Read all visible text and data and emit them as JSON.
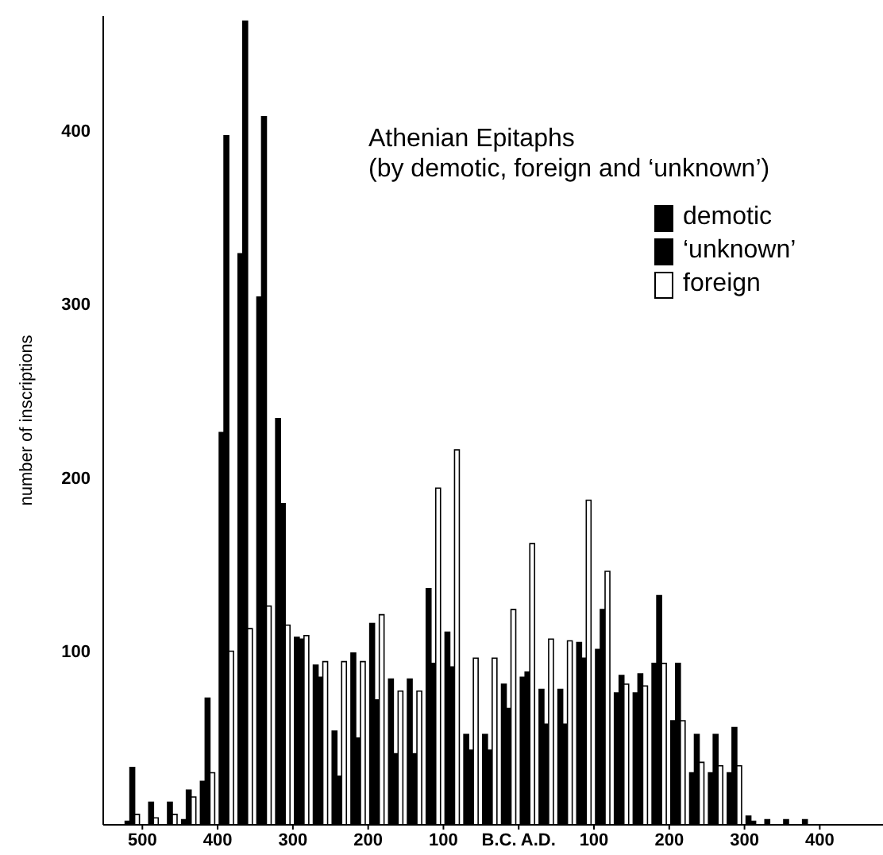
{
  "chart_data": {
    "type": "bar",
    "title": "Athenian Epitaphs",
    "subtitle": "(by demotic, foreign and ‘unknown’)",
    "ylabel": "number of inscriptions",
    "x": [
      -512.5,
      -487.5,
      -462.5,
      -437.5,
      -412.5,
      -387.5,
      -362.5,
      -337.5,
      -312.5,
      -287.5,
      -262.5,
      -237.5,
      -212.5,
      -187.5,
      -162.5,
      -137.5,
      -112.5,
      -87.5,
      -62.5,
      -37.5,
      -12.5,
      12.5,
      37.5,
      62.5,
      87.5,
      112.5,
      137.5,
      162.5,
      187.5,
      212.5,
      237.5,
      262.5,
      287.5,
      312.5,
      337.5,
      362.5,
      387.5
    ],
    "series": [
      {
        "name": "demotic",
        "color": "#000000",
        "values": [
          2,
          0,
          0,
          3,
          25,
          226,
          329,
          304,
          234,
          108,
          92,
          54,
          99,
          116,
          84,
          84,
          136,
          111,
          52,
          52,
          81,
          85,
          78,
          78,
          105,
          101,
          76,
          76,
          93,
          60,
          30,
          30,
          30,
          5,
          3,
          3,
          3
        ]
      },
      {
        "name": "‘unknown’",
        "color": "#000000",
        "values": [
          33,
          13,
          13,
          20,
          73,
          397,
          463,
          408,
          185,
          107,
          85,
          28,
          50,
          72,
          41,
          41,
          93,
          91,
          43,
          43,
          67,
          88,
          58,
          58,
          96,
          124,
          86,
          87,
          132,
          93,
          52,
          52,
          56,
          2,
          0,
          0,
          0
        ]
      },
      {
        "name": "foreign",
        "color": "#ffffff",
        "values": [
          6,
          4,
          6,
          16,
          30,
          100,
          113,
          126,
          115,
          109,
          94,
          94,
          94,
          121,
          77,
          77,
          194,
          216,
          96,
          96,
          124,
          162,
          107,
          106,
          187,
          146,
          81,
          80,
          93,
          60,
          36,
          34,
          34,
          0,
          0,
          0,
          0
        ]
      }
    ],
    "xlim": [
      -552,
      484
    ],
    "xticks": [
      {
        "value": -500,
        "label": "500"
      },
      {
        "value": -400,
        "label": "400"
      },
      {
        "value": -300,
        "label": "300"
      },
      {
        "value": -200,
        "label": "200"
      },
      {
        "value": -100,
        "label": "100"
      },
      {
        "value": 0,
        "label": "B.C. A.D."
      },
      100,
      200,
      300,
      400
    ],
    "ylim": [
      0,
      466
    ],
    "yticks": [
      100,
      200,
      300,
      400
    ],
    "legend": "top right"
  }
}
